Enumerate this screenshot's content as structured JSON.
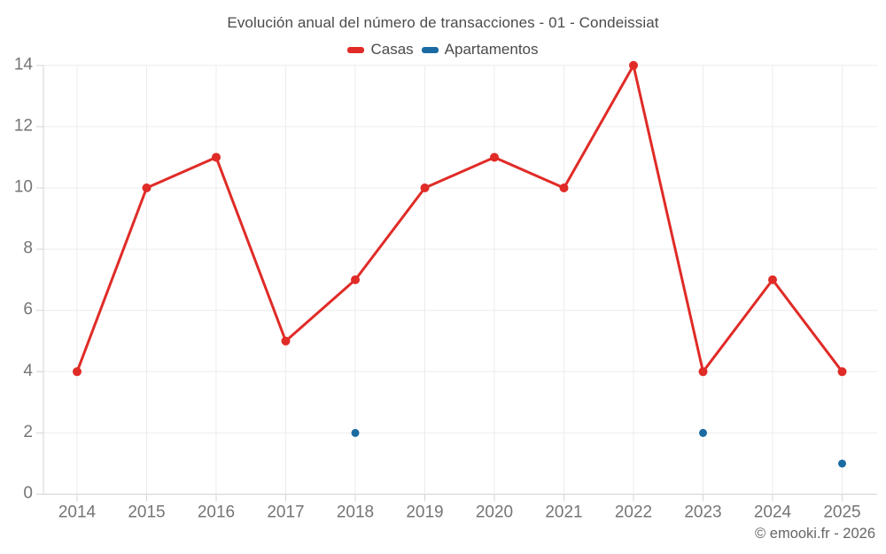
{
  "title": "Evolución anual del número de transacciones - 01 - Condeissiat",
  "legend": [
    {
      "label": "Casas",
      "color": "#e02b27"
    },
    {
      "label": "Apartamentos",
      "color": "#1b6ba3"
    }
  ],
  "copyright": "© emooki.fr - 2026",
  "chart_data": {
    "type": "line",
    "title": "Evolución anual del número de transacciones - 01 - Condeissiat",
    "categories": [
      "2014",
      "2015",
      "2016",
      "2017",
      "2018",
      "2019",
      "2020",
      "2021",
      "2022",
      "2023",
      "2024",
      "2025"
    ],
    "series": [
      {
        "name": "Casas",
        "color": "#e02b27",
        "style": "line+points",
        "values": [
          4,
          10,
          11,
          5,
          7,
          10,
          11,
          10,
          14,
          4,
          7,
          4
        ]
      },
      {
        "name": "Apartamentos",
        "color": "#1b6ba3",
        "style": "points",
        "values": [
          null,
          null,
          null,
          null,
          2,
          null,
          null,
          null,
          null,
          2,
          null,
          1
        ]
      }
    ],
    "xlabel": "",
    "ylabel": "",
    "ylim": [
      0,
      14
    ],
    "ytick_step": 2,
    "grid": true,
    "legend_position": "top",
    "grid_color": "#ececec",
    "axis_color": "#d4d4d4",
    "label_color": "#757575"
  }
}
